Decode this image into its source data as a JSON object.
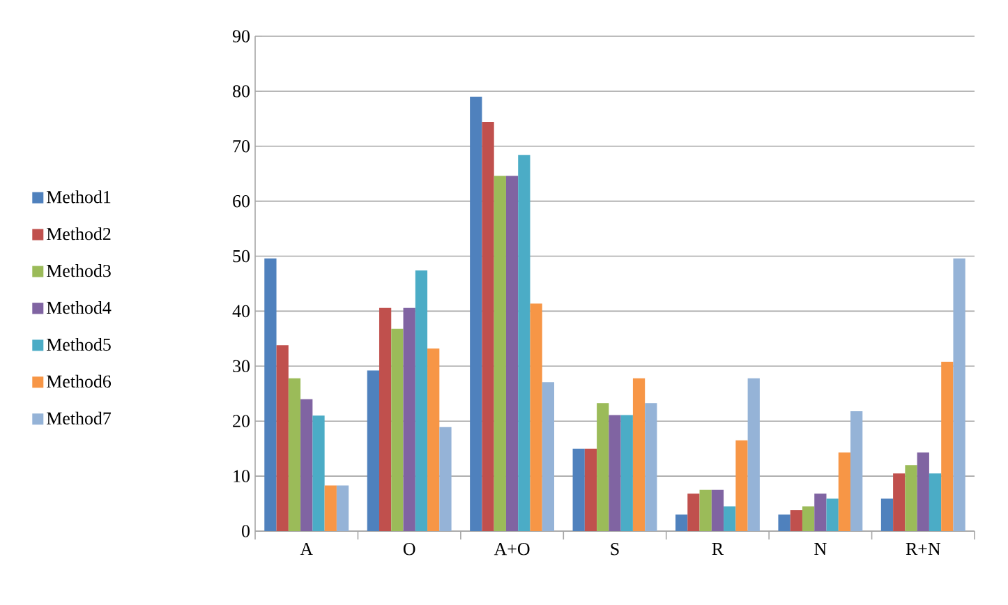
{
  "chart_data": {
    "type": "bar",
    "categories": [
      "A",
      "O",
      "A+O",
      "S",
      "R",
      "N",
      "R+N"
    ],
    "series": [
      {
        "name": "Method1",
        "color": "#4f81bd",
        "values": [
          49.6,
          29.2,
          79,
          15,
          3,
          3,
          5.9
        ]
      },
      {
        "name": "Method2",
        "color": "#c0504d",
        "values": [
          33.8,
          40.6,
          74.4,
          15,
          6.8,
          3.8,
          10.5
        ]
      },
      {
        "name": "Method3",
        "color": "#9bbb59",
        "values": [
          27.8,
          36.8,
          64.6,
          23.3,
          7.5,
          4.5,
          12
        ]
      },
      {
        "name": "Method4",
        "color": "#8064a2",
        "values": [
          24,
          40.6,
          64.6,
          21.1,
          7.5,
          6.8,
          14.3
        ]
      },
      {
        "name": "Method5",
        "color": "#4bacc6",
        "values": [
          21,
          47.4,
          68.4,
          21.1,
          4.5,
          5.9,
          10.5
        ]
      },
      {
        "name": "Method6",
        "color": "#f79646",
        "values": [
          8.3,
          33.2,
          41.4,
          27.8,
          16.5,
          14.3,
          30.8
        ]
      },
      {
        "name": "Method7",
        "color": "#95b3d7",
        "values": [
          8.3,
          18.9,
          27.1,
          23.3,
          27.8,
          21.8,
          49.6
        ]
      }
    ],
    "ylim": [
      0,
      90
    ],
    "yticks": [
      0,
      10,
      20,
      30,
      40,
      50,
      60,
      70,
      80,
      90
    ],
    "grid": "y",
    "legend": "left"
  }
}
